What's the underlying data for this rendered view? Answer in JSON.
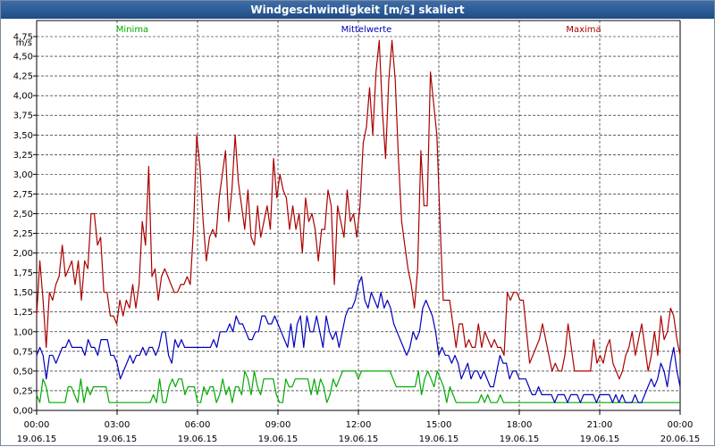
{
  "window": {
    "title": "Windgeschwindigkeit [m/s] skaliert"
  },
  "chart_data": {
    "type": "line",
    "title": "Windgeschwindigkeit [m/s] skaliert",
    "ylabel": "m/s",
    "xlabel": "",
    "ylim": [
      0,
      4.75
    ],
    "xlim": [
      0,
      96
    ],
    "x_unit": "15-minute intervals",
    "y_ticks": [
      "0,00",
      "0,25",
      "0,50",
      "0,75",
      "1,00",
      "1,25",
      "1,50",
      "1,75",
      "2,00",
      "2,25",
      "2,50",
      "2,75",
      "3,00",
      "3,25",
      "3,50",
      "3,75",
      "4,00",
      "4,25",
      "4,50",
      "4,75"
    ],
    "x_ticks": [
      {
        "time": "00:00",
        "date": "19.06.15"
      },
      {
        "time": "03:00",
        "date": "19.06.15"
      },
      {
        "time": "06:00",
        "date": "19.06.15"
      },
      {
        "time": "09:00",
        "date": "19.06.15"
      },
      {
        "time": "12:00",
        "date": "19.06.15"
      },
      {
        "time": "15:00",
        "date": "19.06.15"
      },
      {
        "time": "18:00",
        "date": "19.06.15"
      },
      {
        "time": "21:00",
        "date": "19.06.15"
      },
      {
        "time": "00:00",
        "date": "20.06.15"
      }
    ],
    "grid": true,
    "series": [
      {
        "name": "Minima",
        "color": "#00aa00",
        "values": [
          0.2,
          0.1,
          0.4,
          0.3,
          0.1,
          0.1,
          0.1,
          0.1,
          0.1,
          0.1,
          0.3,
          0.3,
          0.2,
          0.1,
          0.4,
          0.1,
          0.3,
          0.2,
          0.3,
          0.3,
          0.3,
          0.3,
          0.3,
          0.1,
          0.1,
          0.1,
          0.1,
          0.1,
          0.1,
          0.1,
          0.1,
          0.1,
          0.1,
          0.1,
          0.1,
          0.1,
          0.1,
          0.2,
          0.1,
          0.4,
          0.1,
          0.1,
          0.3,
          0.4,
          0.3,
          0.4,
          0.4,
          0.2,
          0.3,
          0.3,
          0.3,
          0.1,
          0.1,
          0.3,
          0.2,
          0.3,
          0.3,
          0.1,
          0.2,
          0.4,
          0.2,
          0.3,
          0.1,
          0.3,
          0.3,
          0.2,
          0.5,
          0.4,
          0.2,
          0.5,
          0.3,
          0.2,
          0.4,
          0.4,
          0.4,
          0.4,
          0.2,
          0.1,
          0.1,
          0.4,
          0.3,
          0.3,
          0.4,
          0.4,
          0.4,
          0.4,
          0.4,
          0.2,
          0.4,
          0.2,
          0.4,
          0.3,
          0.1,
          0.2,
          0.4,
          0.3,
          0.4,
          0.5,
          0.5,
          0.5,
          0.5,
          0.5,
          0.4,
          0.5,
          0.5,
          0.5,
          0.5,
          0.5,
          0.5,
          0.5,
          0.5,
          0.5,
          0.5,
          0.4,
          0.3,
          0.3,
          0.3,
          0.3,
          0.3,
          0.3,
          0.3,
          0.5,
          0.2,
          0.4,
          0.5,
          0.4,
          0.3,
          0.5,
          0.4,
          0.3,
          0.1,
          0.3,
          0.2,
          0.1,
          0.1,
          0.1,
          0.1,
          0.1,
          0.1,
          0.1,
          0.1,
          0.2,
          0.1,
          0.2,
          0.1,
          0.1,
          0.1,
          0.2,
          0.1,
          0.1,
          0.1,
          0.1,
          0.1,
          0.1,
          0.1,
          0.1,
          0.1,
          0.1,
          0.1,
          0.1,
          0.1,
          0.1,
          0.1,
          0.1,
          0.1,
          0.1,
          0.1,
          0.1,
          0.1,
          0.1,
          0.1,
          0.1,
          0.1,
          0.1,
          0.1,
          0.1,
          0.1,
          0.1,
          0.1,
          0.1,
          0.1,
          0.1,
          0.1,
          0.1,
          0.1,
          0.1,
          0.1,
          0.1,
          0.1,
          0.1,
          0.1,
          0.1,
          0.1,
          0.1,
          0.1,
          0.1,
          0.1,
          0.1,
          0.1,
          0.1,
          0.1,
          0.1,
          0.1,
          0.1,
          0.1
        ]
      },
      {
        "name": "Mittelwerte",
        "color": "#0000bb",
        "values": [
          0.7,
          0.8,
          0.7,
          0.4,
          0.7,
          0.7,
          0.6,
          0.7,
          0.8,
          0.8,
          0.9,
          0.8,
          0.8,
          0.8,
          0.8,
          0.7,
          0.9,
          0.8,
          0.8,
          0.7,
          0.9,
          0.9,
          0.9,
          0.7,
          0.7,
          0.6,
          0.4,
          0.5,
          0.6,
          0.7,
          0.6,
          0.7,
          0.7,
          0.8,
          0.7,
          0.8,
          0.8,
          0.7,
          0.8,
          1.0,
          1.0,
          0.7,
          0.6,
          0.9,
          0.8,
          0.9,
          0.8,
          0.8,
          0.8,
          0.8,
          0.8,
          0.8,
          0.8,
          0.8,
          0.8,
          0.9,
          0.8,
          1.0,
          1.0,
          1.0,
          1.1,
          1.0,
          1.2,
          1.1,
          1.1,
          1.0,
          0.9,
          0.9,
          1.0,
          1.0,
          1.2,
          1.2,
          1.1,
          1.1,
          1.2,
          1.1,
          1.0,
          0.9,
          0.8,
          1.1,
          0.8,
          1.1,
          1.2,
          0.8,
          1.2,
          1.0,
          1.0,
          1.2,
          1.0,
          0.8,
          1.2,
          1.0,
          0.9,
          1.0,
          0.8,
          1.0,
          1.2,
          1.3,
          1.3,
          1.4,
          1.6,
          1.7,
          1.4,
          1.3,
          1.5,
          1.4,
          1.3,
          1.5,
          1.3,
          1.4,
          1.3,
          1.1,
          1.0,
          0.9,
          0.8,
          0.7,
          0.8,
          1.0,
          0.9,
          1.0,
          1.3,
          1.4,
          1.3,
          1.2,
          1.0,
          0.7,
          0.8,
          0.7,
          0.7,
          0.6,
          0.7,
          0.6,
          0.4,
          0.5,
          0.6,
          0.4,
          0.5,
          0.5,
          0.4,
          0.5,
          0.4,
          0.3,
          0.3,
          0.5,
          0.7,
          0.6,
          0.6,
          0.4,
          0.5,
          0.5,
          0.4,
          0.4,
          0.4,
          0.3,
          0.2,
          0.2,
          0.3,
          0.2,
          0.2,
          0.2,
          0.2,
          0.1,
          0.2,
          0.2,
          0.2,
          0.1,
          0.2,
          0.2,
          0.2,
          0.1,
          0.2,
          0.2,
          0.2,
          0.2,
          0.1,
          0.2,
          0.2,
          0.2,
          0.2,
          0.1,
          0.2,
          0.1,
          0.2,
          0.1,
          0.1,
          0.1,
          0.2,
          0.1,
          0.1,
          0.2,
          0.3,
          0.4,
          0.3,
          0.4,
          0.6,
          0.5,
          0.3,
          0.6,
          0.8,
          0.5,
          0.3
        ]
      },
      {
        "name": "Maxima",
        "color": "#aa0000",
        "values": [
          1.2,
          1.9,
          1.4,
          0.8,
          1.5,
          1.4,
          1.6,
          1.7,
          2.1,
          1.7,
          1.8,
          1.9,
          1.6,
          1.9,
          1.4,
          1.9,
          1.8,
          2.5,
          2.5,
          2.1,
          2.2,
          1.5,
          1.5,
          1.2,
          1.2,
          1.1,
          1.4,
          1.2,
          1.4,
          1.3,
          1.6,
          1.3,
          1.6,
          2.4,
          2.1,
          3.1,
          1.7,
          1.8,
          1.4,
          1.7,
          1.8,
          1.7,
          1.6,
          1.5,
          1.5,
          1.6,
          1.6,
          1.7,
          1.6,
          2.3,
          3.5,
          3.1,
          2.4,
          1.9,
          2.2,
          2.3,
          2.2,
          2.7,
          3.0,
          3.3,
          2.4,
          2.8,
          3.5,
          2.9,
          2.6,
          2.3,
          2.8,
          2.2,
          2.1,
          2.6,
          2.2,
          2.4,
          2.6,
          2.3,
          3.2,
          2.7,
          3.0,
          2.8,
          2.7,
          2.3,
          2.6,
          2.3,
          2.5,
          2.0,
          2.7,
          2.4,
          2.5,
          2.3,
          1.9,
          2.3,
          2.3,
          2.8,
          2.6,
          1.6,
          2.6,
          2.4,
          2.2,
          2.8,
          2.4,
          2.5,
          2.2,
          2.6,
          3.4,
          3.6,
          4.1,
          3.5,
          4.3,
          4.7,
          3.8,
          3.2,
          4.2,
          4.7,
          4.2,
          3.2,
          2.4,
          2.1,
          1.8,
          1.6,
          1.3,
          1.8,
          3.3,
          2.6,
          2.6,
          4.3,
          3.9,
          3.5,
          2.4,
          1.4,
          1.4,
          1.4,
          1.1,
          0.8,
          1.1,
          1.1,
          0.8,
          0.9,
          0.8,
          0.8,
          1.1,
          0.8,
          1.0,
          0.9,
          0.8,
          0.9,
          0.8,
          0.8,
          0.7,
          1.5,
          1.4,
          1.5,
          1.5,
          1.4,
          1.4,
          1.0,
          0.6,
          0.7,
          0.8,
          0.9,
          1.1,
          0.9,
          0.7,
          0.5,
          0.6,
          0.5,
          0.5,
          0.7,
          1.1,
          0.8,
          0.5,
          0.5,
          0.5,
          0.5,
          0.5,
          0.5,
          0.9,
          0.6,
          0.7,
          0.6,
          0.8,
          0.9,
          0.6,
          0.5,
          0.4,
          0.5,
          0.7,
          0.8,
          1.0,
          0.7,
          0.9,
          1.1,
          0.8,
          0.5,
          0.7,
          1.0,
          0.7,
          1.2,
          0.9,
          1.0,
          1.3,
          1.2,
          0.9,
          0.7
        ]
      }
    ]
  }
}
